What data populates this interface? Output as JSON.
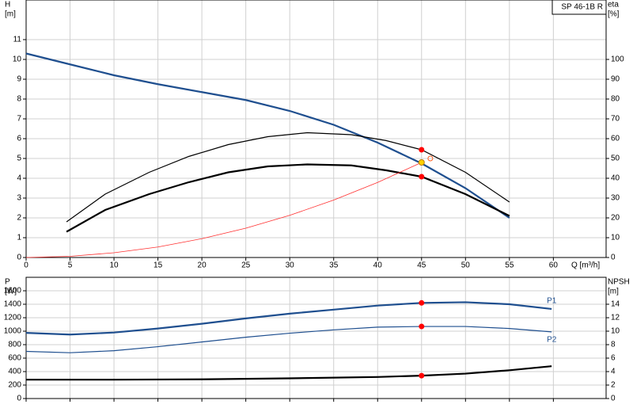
{
  "chart_data": [
    {
      "type": "line",
      "label": "SP 46-1B R",
      "ylabel": [
        "H",
        "[m]"
      ],
      "y2label": [
        "eta",
        "[%]"
      ],
      "xlabel": "Q [m³/h]",
      "xlim": [
        0,
        66
      ],
      "xticks": [
        0,
        5,
        10,
        15,
        20,
        25,
        30,
        35,
        40,
        45,
        50,
        55,
        60
      ],
      "ylim": [
        0,
        13
      ],
      "yticks": [
        0,
        1,
        2,
        3,
        4,
        5,
        6,
        7,
        8,
        9,
        10,
        11
      ],
      "y2lim": [
        0,
        130
      ],
      "y2ticks": [
        0,
        10,
        20,
        30,
        40,
        50,
        60,
        70,
        80,
        90,
        100
      ],
      "grid": true,
      "series": [
        {
          "color": "#1f4f8f",
          "width": 2.2,
          "x": [
            0,
            5,
            10,
            15,
            20,
            25,
            30,
            35,
            40,
            45,
            50,
            55
          ],
          "values": [
            10.3,
            9.75,
            9.2,
            8.75,
            8.35,
            7.95,
            7.4,
            6.7,
            5.8,
            4.75,
            3.5,
            2.0
          ]
        },
        {
          "color": "#000000",
          "width": 1.2,
          "axis": "y2",
          "x": [
            4.6,
            9,
            14,
            18.5,
            23,
            27.5,
            32,
            37,
            41,
            45,
            50,
            55
          ],
          "values": [
            18,
            32,
            43,
            51,
            57,
            61,
            63,
            62,
            59,
            54.4,
            43,
            28
          ]
        },
        {
          "color": "#000000",
          "width": 2.2,
          "axis": "y2",
          "x": [
            4.6,
            9,
            14,
            18.5,
            23,
            27.5,
            32,
            37,
            41,
            45,
            50,
            55
          ],
          "values": [
            13,
            24,
            32,
            38,
            43,
            46,
            47,
            46.5,
            44,
            40.8,
            32,
            21
          ]
        },
        {
          "color": "#ff3030",
          "width": 0.8,
          "x": [
            0,
            5,
            10,
            15,
            20,
            25,
            30,
            35,
            40,
            45
          ],
          "values": [
            0,
            0.06,
            0.24,
            0.53,
            0.95,
            1.48,
            2.13,
            2.9,
            3.79,
            4.8
          ]
        }
      ],
      "points": [
        {
          "x": 45,
          "y": 54.4,
          "axis": "y2",
          "color": "#ff0000"
        },
        {
          "x": 45,
          "y": 40.8,
          "axis": "y2",
          "color": "#ff0000"
        },
        {
          "x": 45,
          "y": 4.8,
          "color": "#ffd000"
        },
        {
          "x": 46,
          "y": 5.0,
          "color": "#ff6020",
          "hollow": true
        }
      ]
    },
    {
      "type": "line",
      "ylabel": [
        "P",
        "[W]"
      ],
      "y2label": [
        "NPSH",
        "[m]"
      ],
      "xlim": [
        0,
        66
      ],
      "ylim": [
        0,
        1800
      ],
      "yticks": [
        0,
        200,
        400,
        600,
        800,
        1000,
        1200,
        1400,
        1600
      ],
      "y2lim": [
        0,
        18
      ],
      "y2ticks": [
        0,
        2,
        4,
        6,
        8,
        10,
        12,
        14
      ],
      "grid": true,
      "series": [
        {
          "name": "P1",
          "color": "#1f4f8f",
          "width": 2.2,
          "x": [
            0,
            5,
            10,
            15,
            20,
            25,
            30,
            35,
            40,
            45,
            50,
            55,
            59.8
          ],
          "values": [
            975,
            950,
            980,
            1040,
            1110,
            1190,
            1260,
            1320,
            1380,
            1420,
            1430,
            1400,
            1330
          ]
        },
        {
          "name": "P2",
          "color": "#1f4f8f",
          "width": 1.2,
          "x": [
            0,
            5,
            10,
            15,
            20,
            25,
            30,
            35,
            40,
            45,
            50,
            55,
            59.8
          ],
          "values": [
            700,
            680,
            710,
            770,
            840,
            910,
            970,
            1020,
            1060,
            1070,
            1070,
            1040,
            990
          ]
        },
        {
          "color": "#000000",
          "width": 2.2,
          "axis": "y2",
          "x": [
            0,
            10,
            20,
            30,
            40,
            45,
            50,
            55,
            59.8
          ],
          "values": [
            2.8,
            2.8,
            2.85,
            3.0,
            3.2,
            3.4,
            3.7,
            4.2,
            4.8
          ]
        }
      ],
      "points": [
        {
          "x": 45,
          "y": 1420,
          "color": "#ff0000"
        },
        {
          "x": 45,
          "y": 1070,
          "color": "#ff0000"
        },
        {
          "x": 45,
          "y": 3.4,
          "axis": "y2",
          "color": "#ff0000"
        }
      ]
    }
  ]
}
